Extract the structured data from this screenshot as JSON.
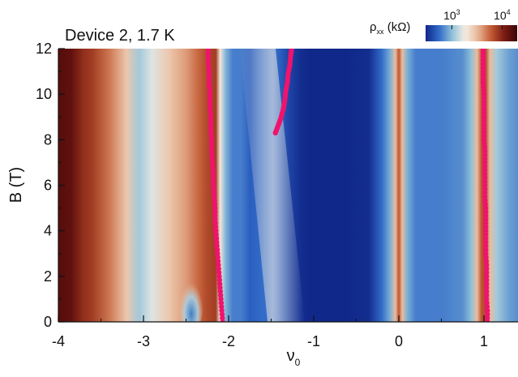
{
  "chart_data": {
    "type": "heatmap",
    "title": "Device 2, 1.7 K",
    "xlabel": "ν",
    "xlabel_sub": "0",
    "ylabel": "B (T)",
    "xlim": [
      -4.0,
      1.4
    ],
    "ylim": [
      0,
      12
    ],
    "xticks": [
      -4,
      -3,
      -2,
      -1,
      0,
      1
    ],
    "xtick_labels": [
      "-4",
      "-3",
      "-2",
      "-1",
      "0",
      "1"
    ],
    "yticks": [
      0,
      2,
      4,
      6,
      8,
      10,
      12
    ],
    "ytick_labels": [
      "0",
      "2",
      "4",
      "6",
      "8",
      "10",
      "12"
    ],
    "colorbar": {
      "label_symbol": "ρ",
      "label_sub": "xx",
      "label_unit": "(kΩ)",
      "scale": "log",
      "ticks": [
        {
          "value": 1000,
          "base": "10",
          "exp": "3"
        },
        {
          "value": 10000,
          "base": "10",
          "exp": "4"
        }
      ],
      "range": [
        300,
        20000
      ]
    },
    "colormap": [
      "#10288a",
      "#2f68c8",
      "#8ec0d8",
      "#f6efe6",
      "#e8b899",
      "#c35a32",
      "#7a1a12",
      "#3d0508"
    ],
    "marker_color": "#f0136d",
    "heatmap_profile": {
      "nu": [
        -4.0,
        -3.85,
        -3.7,
        -3.6,
        -3.4,
        -3.2,
        -3.05,
        -2.9,
        -2.7,
        -2.5,
        -2.35,
        -2.25,
        -2.15,
        -2.1,
        -2.03,
        -1.95,
        -1.85,
        -1.75,
        -1.6,
        -1.45,
        -1.3,
        -1.15,
        -1.05,
        -0.9,
        -0.6,
        -0.35,
        -0.2,
        -0.1,
        -0.04,
        0.0,
        0.04,
        0.1,
        0.2,
        0.5,
        0.75,
        0.85,
        0.92,
        0.97,
        1.02,
        1.07,
        1.15,
        1.3,
        1.4
      ],
      "log10_rho": [
        4.2,
        4.15,
        3.95,
        3.9,
        3.7,
        3.45,
        3.05,
        3.2,
        3.45,
        3.6,
        3.75,
        3.85,
        3.9,
        3.3,
        2.95,
        2.8,
        2.8,
        2.7,
        2.75,
        2.75,
        2.6,
        2.5,
        2.45,
        2.45,
        2.45,
        2.5,
        2.75,
        2.95,
        3.5,
        3.8,
        3.5,
        2.95,
        2.8,
        2.8,
        2.85,
        3.0,
        3.5,
        3.8,
        3.85,
        3.5,
        3.05,
        2.9,
        2.85
      ]
    },
    "series": [
      {
        "marker": "circle",
        "points": [
          [
            -2.07,
            0.0
          ],
          [
            -2.08,
            0.5
          ],
          [
            -2.09,
            1.0
          ],
          [
            -2.1,
            1.5
          ],
          [
            -2.11,
            2.0
          ],
          [
            -2.12,
            2.5
          ],
          [
            -2.13,
            3.0
          ],
          [
            -2.14,
            3.5
          ],
          [
            -2.15,
            4.0
          ],
          [
            -2.16,
            4.5
          ],
          [
            -2.16,
            5.0
          ],
          [
            -2.17,
            5.5
          ],
          [
            -2.18,
            6.0
          ],
          [
            -2.18,
            6.5
          ],
          [
            -2.19,
            7.0
          ],
          [
            -2.2,
            7.5
          ],
          [
            -2.2,
            8.0
          ],
          [
            -2.21,
            8.5
          ],
          [
            -2.21,
            9.0
          ],
          [
            -2.22,
            9.5
          ],
          [
            -2.22,
            10.0
          ],
          [
            -2.23,
            10.5
          ],
          [
            -2.23,
            11.0
          ],
          [
            -2.24,
            11.5
          ],
          [
            -2.24,
            12.0
          ]
        ]
      },
      {
        "marker": "circle",
        "points": [
          [
            -1.45,
            8.3
          ],
          [
            -1.42,
            8.6
          ],
          [
            -1.39,
            8.9
          ],
          [
            -1.36,
            9.3
          ],
          [
            -1.34,
            9.7
          ],
          [
            -1.33,
            10.1
          ],
          [
            -1.31,
            10.5
          ],
          [
            -1.3,
            10.9
          ],
          [
            -1.28,
            11.3
          ],
          [
            -1.27,
            11.7
          ],
          [
            -1.26,
            12.0
          ]
        ]
      },
      {
        "marker": "circle",
        "points": [
          [
            1.04,
            0.0
          ],
          [
            1.04,
            0.5
          ],
          [
            1.03,
            1.0
          ],
          [
            1.03,
            1.5
          ],
          [
            1.03,
            2.0
          ],
          [
            1.03,
            2.5
          ],
          [
            1.02,
            3.0
          ],
          [
            1.02,
            3.5
          ],
          [
            1.02,
            4.0
          ],
          [
            1.02,
            4.5
          ],
          [
            1.02,
            5.0
          ],
          [
            1.01,
            5.5
          ],
          [
            1.01,
            6.0
          ],
          [
            1.01,
            6.5
          ],
          [
            1.01,
            7.0
          ],
          [
            1.01,
            7.5
          ],
          [
            1.0,
            8.0
          ],
          [
            1.0,
            8.5
          ],
          [
            1.0,
            9.0
          ],
          [
            1.0,
            9.5
          ],
          [
            1.0,
            10.0
          ],
          [
            0.99,
            10.5
          ],
          [
            0.99,
            11.0
          ],
          [
            0.99,
            11.5
          ],
          [
            0.99,
            12.0
          ]
        ]
      }
    ]
  }
}
